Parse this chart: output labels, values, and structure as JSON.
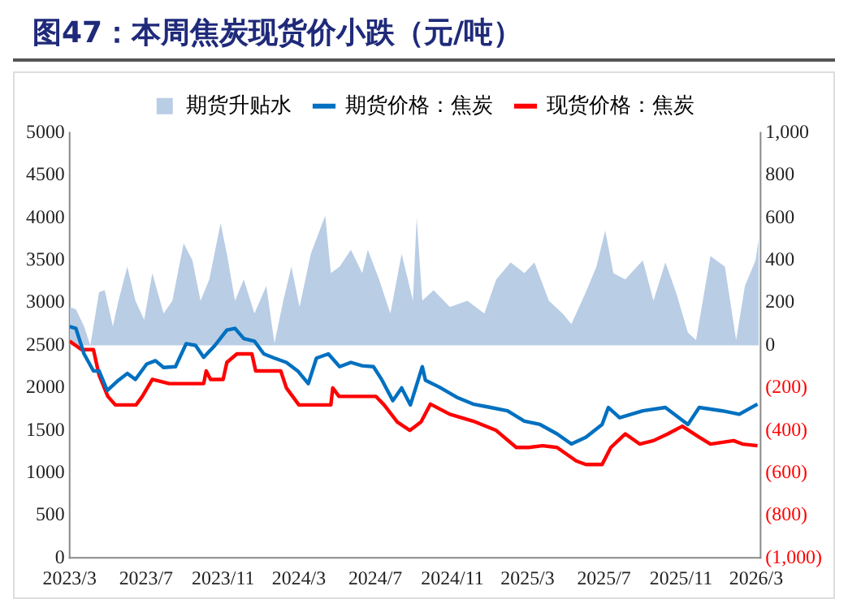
{
  "chart_data": {
    "type": "line",
    "title": "图47：本周焦炭现货价小跌（元/吨）",
    "xlim": [
      "2023-03-01",
      "2026-03-08"
    ],
    "xticks": [
      {
        "value": "2023-03",
        "label": "2023/3"
      },
      {
        "value": "2023-07",
        "label": "2023/7"
      },
      {
        "value": "2023-11",
        "label": "2023/11"
      },
      {
        "value": "2024-03",
        "label": "2024/3"
      },
      {
        "value": "2024-07",
        "label": "2024/7"
      },
      {
        "value": "2024-11",
        "label": "2024/11"
      },
      {
        "value": "2025-03",
        "label": "2025/3"
      },
      {
        "value": "2025-07",
        "label": "2025/7"
      },
      {
        "value": "2025-11",
        "label": "2025/11"
      },
      {
        "value": "2026-03",
        "label": "2026/3"
      }
    ],
    "ylim": [
      0,
      5000
    ],
    "yticks": [
      0,
      500,
      1000,
      1500,
      2000,
      2500,
      3000,
      3500,
      4000,
      4500,
      5000
    ],
    "y2lim": [
      -1000,
      1000
    ],
    "y2ticks": [
      {
        "value": -1000,
        "label": "(1,000)"
      },
      {
        "value": -800,
        "label": "(800)"
      },
      {
        "value": -600,
        "label": "(600)"
      },
      {
        "value": -400,
        "label": "(400)"
      },
      {
        "value": -200,
        "label": "(200)"
      },
      0,
      200,
      400,
      600,
      800,
      {
        "value": 1000,
        "label": "1,000"
      }
    ],
    "grid": false,
    "legend": "top",
    "series": [
      {
        "name": "期货升贴水",
        "type": "area",
        "axis": "y2",
        "color": "#b9cde5",
        "x": [
          "2023-03-01",
          "2023-03-11",
          "2023-03-24",
          "2023-04-03",
          "2023-04-17",
          "2023-04-26",
          "2023-05-09",
          "2023-05-18",
          "2023-06-01",
          "2023-06-14",
          "2023-06-28",
          "2023-07-11",
          "2023-07-29",
          "2023-08-12",
          "2023-08-30",
          "2023-09-13",
          "2023-09-26",
          "2023-10-10",
          "2023-10-28",
          "2023-11-07",
          "2023-11-20",
          "2023-12-04",
          "2023-12-21",
          "2024-01-09",
          "2024-01-22",
          "2024-02-05",
          "2024-02-18",
          "2024-03-02",
          "2024-03-20",
          "2024-04-12",
          "2024-04-21",
          "2024-05-05",
          "2024-05-23",
          "2024-06-10",
          "2024-06-19",
          "2024-07-07",
          "2024-07-25",
          "2024-08-12",
          "2024-08-30",
          "2024-09-05",
          "2024-09-14",
          "2024-10-02",
          "2024-10-28",
          "2024-11-25",
          "2024-12-22",
          "2025-01-10",
          "2025-02-02",
          "2025-02-24",
          "2025-03-12",
          "2025-04-04",
          "2025-04-26",
          "2025-05-10",
          "2025-06-02",
          "2025-06-19",
          "2025-07-03",
          "2025-07-16",
          "2025-08-04",
          "2025-09-01",
          "2025-09-18",
          "2025-10-07",
          "2025-10-24",
          "2025-11-12",
          "2025-11-25",
          "2025-12-18",
          "2026-01-10",
          "2026-01-28",
          "2026-02-11",
          "2026-02-28",
          "2026-03-05"
        ],
        "values": [
          180,
          170,
          90,
          0,
          250,
          260,
          90,
          210,
          370,
          210,
          120,
          340,
          150,
          210,
          480,
          400,
          210,
          310,
          575,
          430,
          210,
          310,
          150,
          280,
          10,
          210,
          370,
          180,
          430,
          610,
          340,
          370,
          450,
          340,
          450,
          310,
          150,
          430,
          210,
          600,
          210,
          260,
          180,
          210,
          150,
          310,
          390,
          340,
          390,
          210,
          150,
          100,
          250,
          370,
          540,
          340,
          310,
          400,
          210,
          390,
          250,
          60,
          25,
          420,
          370,
          25,
          280,
          400,
          500
        ]
      },
      {
        "name": "期货价格：焦炭",
        "type": "line",
        "color": "#0070c0",
        "x": [
          "2023-03-01",
          "2023-03-11",
          "2023-03-24",
          "2023-04-08",
          "2023-04-17",
          "2023-04-30",
          "2023-05-18",
          "2023-06-01",
          "2023-06-14",
          "2023-07-02",
          "2023-07-16",
          "2023-07-29",
          "2023-08-17",
          "2023-09-03",
          "2023-09-18",
          "2023-10-01",
          "2023-10-19",
          "2023-11-07",
          "2023-11-20",
          "2023-12-04",
          "2023-12-21",
          "2024-01-05",
          "2024-01-22",
          "2024-02-10",
          "2024-02-28",
          "2024-03-16",
          "2024-03-29",
          "2024-04-17",
          "2024-05-05",
          "2024-05-23",
          "2024-06-10",
          "2024-06-28",
          "2024-07-11",
          "2024-07-29",
          "2024-08-12",
          "2024-08-26",
          "2024-09-14",
          "2024-09-19",
          "2024-10-11",
          "2024-11-08",
          "2024-12-04",
          "2025-01-01",
          "2025-01-28",
          "2025-02-24",
          "2025-03-21",
          "2025-04-17",
          "2025-05-10",
          "2025-06-02",
          "2025-06-28",
          "2025-07-08",
          "2025-07-26",
          "2025-09-01",
          "2025-10-07",
          "2025-11-12",
          "2025-11-30",
          "2026-01-06",
          "2026-02-02",
          "2026-03-03"
        ],
        "values": [
          2720,
          2700,
          2400,
          2200,
          2200,
          1970,
          2090,
          2170,
          2100,
          2280,
          2320,
          2240,
          2250,
          2520,
          2500,
          2360,
          2500,
          2680,
          2700,
          2580,
          2550,
          2400,
          2350,
          2300,
          2200,
          2050,
          2350,
          2400,
          2250,
          2300,
          2260,
          2250,
          2100,
          1850,
          2000,
          1800,
          2250,
          2090,
          2010,
          1890,
          1810,
          1770,
          1730,
          1610,
          1570,
          1460,
          1340,
          1420,
          1570,
          1770,
          1650,
          1730,
          1770,
          1570,
          1770,
          1730,
          1690,
          1810
        ]
      },
      {
        "name": "现货价格：焦炭",
        "type": "line",
        "color": "#ff0000",
        "x": [
          "2023-03-01",
          "2023-03-20",
          "2023-04-08",
          "2023-04-17",
          "2023-05-01",
          "2023-05-13",
          "2023-06-15",
          "2023-06-25",
          "2023-07-11",
          "2023-08-07",
          "2023-10-01",
          "2023-10-05",
          "2023-10-12",
          "2023-11-01",
          "2023-11-07",
          "2023-11-23",
          "2023-12-17",
          "2023-12-23",
          "2024-02-01",
          "2024-02-10",
          "2024-03-01",
          "2024-04-21",
          "2024-04-24",
          "2024-05-04",
          "2024-06-18",
          "2024-07-02",
          "2024-07-15",
          "2024-08-05",
          "2024-08-25",
          "2024-09-12",
          "2024-09-27",
          "2024-10-28",
          "2024-12-04",
          "2025-01-10",
          "2025-02-11",
          "2025-03-03",
          "2025-03-25",
          "2025-04-17",
          "2025-05-18",
          "2025-06-02",
          "2025-06-28",
          "2025-07-12",
          "2025-08-04",
          "2025-08-27",
          "2025-09-18",
          "2025-10-11",
          "2025-11-03",
          "2025-11-30",
          "2025-12-18",
          "2026-01-24",
          "2026-02-07",
          "2026-03-03"
        ],
        "values": [
          2550,
          2450,
          2450,
          2150,
          1900,
          1800,
          1800,
          1900,
          2100,
          2050,
          2050,
          2200,
          2100,
          2100,
          2300,
          2400,
          2400,
          2200,
          2200,
          2000,
          1800,
          1800,
          2000,
          1900,
          1900,
          1900,
          1800,
          1600,
          1500,
          1600,
          1810,
          1690,
          1610,
          1500,
          1300,
          1300,
          1320,
          1300,
          1140,
          1100,
          1100,
          1300,
          1460,
          1340,
          1380,
          1460,
          1550,
          1420,
          1340,
          1380,
          1340,
          1320
        ]
      }
    ]
  }
}
